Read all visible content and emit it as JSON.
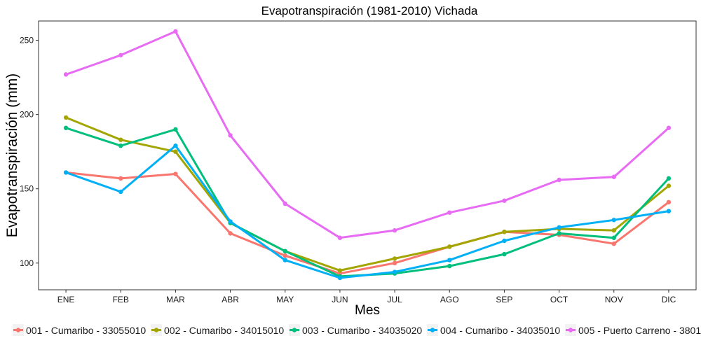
{
  "chart_data": {
    "type": "line",
    "title": "Evapotranspiración (1981-2010)  Vichada",
    "xlabel": "Mes",
    "ylabel": "Evapotranspiración  (mm)",
    "categories": [
      "ENE",
      "FEB",
      "MAR",
      "ABR",
      "MAY",
      "JUN",
      "JUL",
      "AGO",
      "SEP",
      "OCT",
      "NOV",
      "DIC"
    ],
    "ylim": [
      82,
      263
    ],
    "yticks": [
      100,
      150,
      200,
      250
    ],
    "grid": false,
    "legend_position": "bottom",
    "series": [
      {
        "name": "001 - Cumaribo - 33055010",
        "color": "#F8766D",
        "values": [
          161,
          157,
          160,
          120,
          105,
          93,
          100,
          111,
          121,
          119,
          113,
          141
        ]
      },
      {
        "name": "002 - Cumaribo - 34015010",
        "color": "#A3A500",
        "values": [
          198,
          183,
          175,
          127,
          108,
          95,
          103,
          111,
          121,
          123,
          122,
          152
        ]
      },
      {
        "name": "003 - Cumaribo - 34035020",
        "color": "#00BF7D",
        "values": [
          191,
          179,
          190,
          127,
          108,
          91,
          93,
          98,
          106,
          120,
          117,
          157
        ]
      },
      {
        "name": "004 - Cumaribo - 34035010",
        "color": "#00B0F6",
        "values": [
          161,
          148,
          179,
          128,
          102,
          90,
          94,
          102,
          115,
          124,
          129,
          135
        ]
      },
      {
        "name": "005 - Puerto Carreno - 3801",
        "color": "#E76BF3",
        "values": [
          227,
          240,
          256,
          186,
          140,
          117,
          122,
          134,
          142,
          156,
          158,
          191
        ]
      }
    ]
  }
}
